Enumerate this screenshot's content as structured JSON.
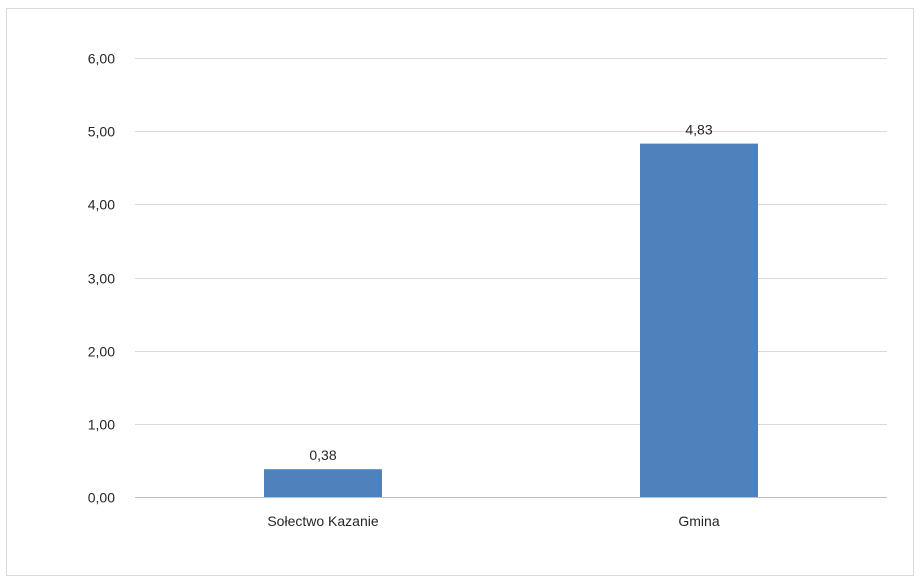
{
  "chart_data": {
    "type": "bar",
    "categories": [
      "Sołectwo Kazanie",
      "Gmina"
    ],
    "values": [
      0.38,
      4.83
    ],
    "value_labels": [
      "0,38",
      "4,83"
    ],
    "ylim": [
      0,
      6
    ],
    "yticks": [
      0,
      1,
      2,
      3,
      4,
      5,
      6
    ],
    "ytick_labels": [
      "0,00",
      "1,00",
      "2,00",
      "3,00",
      "4,00",
      "5,00",
      "6,00"
    ],
    "title": "",
    "xlabel": "",
    "ylabel": "",
    "grid": true,
    "legend": "none",
    "colors": {
      "bar": "#4F81BD",
      "grid": "#D9D9D9",
      "axis": "#BFBFBF",
      "text": "#262626"
    }
  }
}
